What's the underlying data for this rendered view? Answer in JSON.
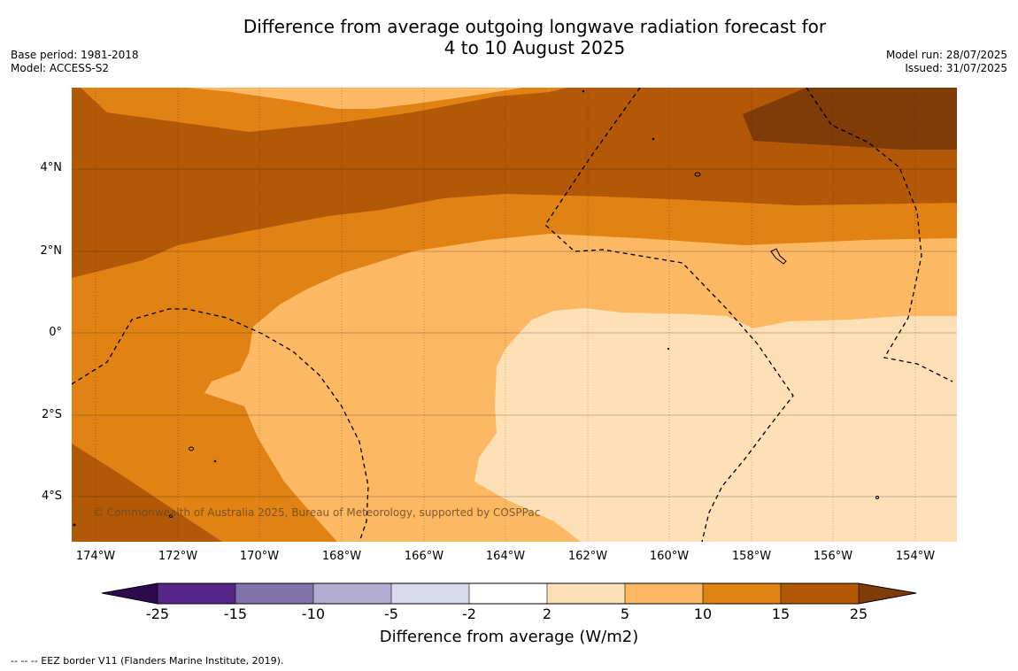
{
  "title_line1": "Difference from average outgoing longwave radiation forecast for",
  "title_line2": "4 to 10 August 2025",
  "meta_left": {
    "base_period": "Base period: 1981-2018",
    "model": "Model: ACCESS-S2"
  },
  "meta_right": {
    "model_run": "Model run: 28/07/2025",
    "issued": "Issued: 31/07/2025"
  },
  "copyright": "© Commonwealth of Australia 2025, Bureau of Meteorology, supported by COSPPac",
  "lat_labels": [
    "4°N",
    "2°N",
    "0°",
    "2°S",
    "4°S"
  ],
  "lon_labels": [
    "174°W",
    "172°W",
    "170°W",
    "168°W",
    "166°W",
    "164°W",
    "162°W",
    "160°W",
    "158°W",
    "156°W",
    "154°W"
  ],
  "colorbar": {
    "ticks": [
      "-25",
      "-15",
      "-10",
      "-5",
      "-2",
      "2",
      "5",
      "10",
      "15",
      "25"
    ],
    "title": "Difference from average (W/m2)",
    "colors": {
      "below_-25": "#2d0a4e",
      "-25_-15": "#542788",
      "-15_-10": "#8073ac",
      "-10_-5": "#b2abd2",
      "-5_-2": "#d8daeb",
      "-2_2": "#ffffff",
      "2_5": "#fee0b6",
      "5_10": "#fdb863",
      "10_15": "#e08214",
      "15_25": "#b35806",
      "above_25": "#7f3b08"
    }
  },
  "footnote": "--  --  -- EEZ border V11 (Flanders Marine Institute, 2019)."
}
